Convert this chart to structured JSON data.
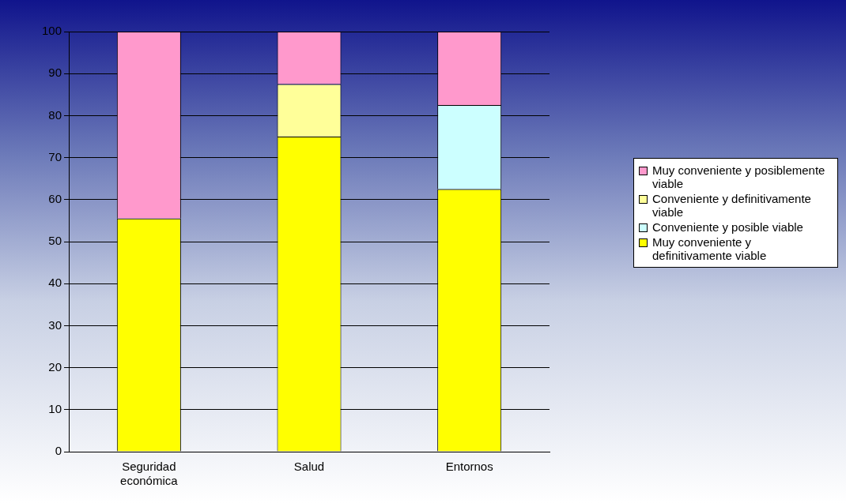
{
  "chart_data": {
    "type": "bar",
    "stacked": true,
    "categories": [
      "Seguridad económica",
      "Salud",
      "Entornos"
    ],
    "series": [
      {
        "name": "Muy conveniente y definitivamente viable",
        "color": "#ffff00",
        "values": [
          55.5,
          75,
          62.5
        ]
      },
      {
        "name": "Conveniente y posible viable",
        "color": "#ccffff",
        "values": [
          null,
          null,
          20
        ]
      },
      {
        "name": "Conveniente y definitivamente viable",
        "color": "#ffff99",
        "values": [
          null,
          12.5,
          null
        ]
      },
      {
        "name": "Muy conveniente y posiblemente viable",
        "color": "#ff99cc",
        "values": [
          44.5,
          12.5,
          17.5
        ]
      }
    ],
    "ylim": [
      0,
      100
    ],
    "yticks": [
      0,
      10,
      20,
      30,
      40,
      50,
      60,
      70,
      80,
      90,
      100
    ],
    "grid": "y",
    "legend": "right"
  }
}
